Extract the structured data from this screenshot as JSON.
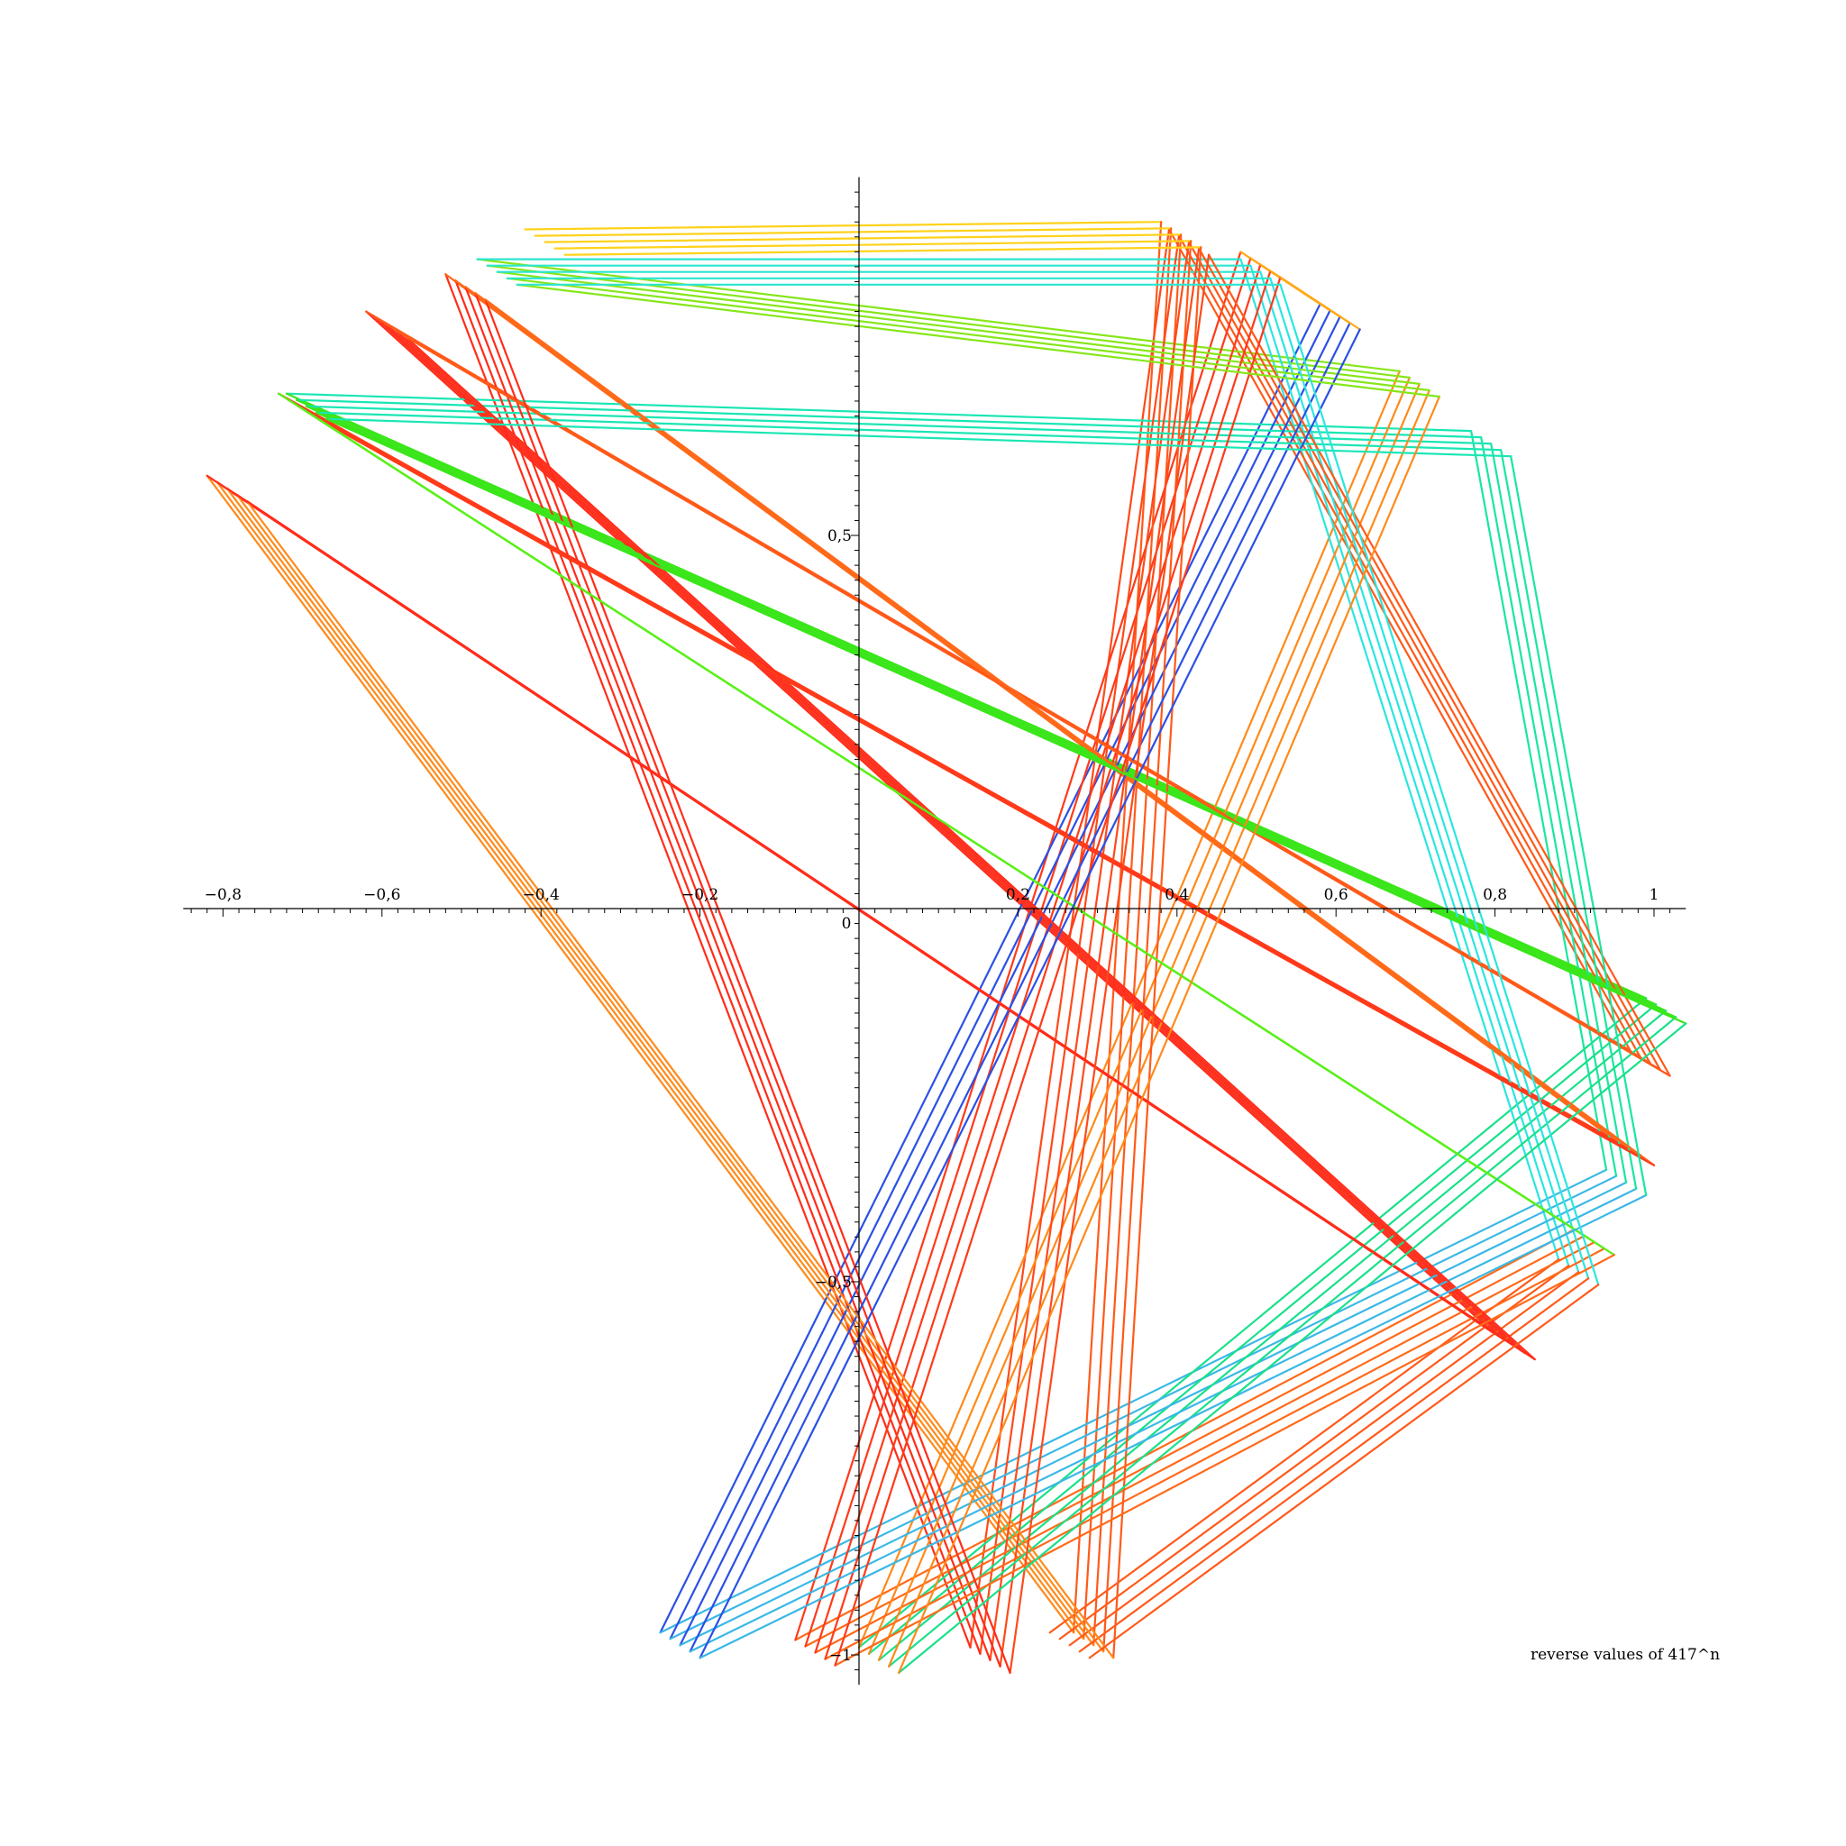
{
  "chart_data": {
    "type": "line",
    "caption": "reverse values of 417^n",
    "xlim": [
      -0.85,
      1.04
    ],
    "ylim": [
      -1.04,
      0.98
    ],
    "x_ticks": [
      {
        "value": -0.8,
        "label": "−0,8"
      },
      {
        "value": -0.6,
        "label": "−0,6"
      },
      {
        "value": -0.4,
        "label": "−0,4"
      },
      {
        "value": -0.2,
        "label": "−0,2"
      },
      {
        "value": 0.2,
        "label": "0,2"
      },
      {
        "value": 0.4,
        "label": "0,4"
      },
      {
        "value": 0.6,
        "label": "0,6"
      },
      {
        "value": 0.8,
        "label": "0,8"
      },
      {
        "value": 1,
        "label": "1"
      }
    ],
    "y_ticks": [
      {
        "value": 0.5,
        "label": "0,5"
      },
      {
        "value": -0.5,
        "label": "−0,5"
      },
      {
        "value": -1,
        "label": "−1"
      }
    ],
    "origin_label": "0",
    "strands": 5,
    "strand_offset": [
      0.0125,
      0.0085
    ],
    "vertices": [
      [
        -0.42,
        0.91
      ],
      [
        0.38,
        0.92
      ],
      [
        0.27,
        -0.97
      ],
      [
        -0.82,
        0.58
      ],
      [
        0.8,
        -0.57
      ],
      [
        -0.62,
        0.8
      ],
      [
        0.97,
        -0.19
      ],
      [
        0.39,
        0.91
      ],
      [
        0.14,
        -0.99
      ],
      [
        -0.52,
        0.85
      ],
      [
        0.95,
        -0.31
      ],
      [
        -0.73,
        0.69
      ],
      [
        0.9,
        -0.43
      ],
      [
        -0.08,
        -0.98
      ],
      [
        0.48,
        0.88
      ],
      [
        0.58,
        0.81
      ],
      [
        -0.25,
        -0.97
      ],
      [
        0.94,
        -0.35
      ],
      [
        0.77,
        0.64
      ],
      [
        -0.72,
        0.69
      ],
      [
        0.99,
        -0.12
      ],
      [
        0.0,
        -0.99
      ],
      [
        0.68,
        0.72
      ],
      [
        -0.48,
        0.87
      ],
      [
        0.48,
        0.87
      ],
      [
        0.88,
        -0.47
      ],
      [
        0.24,
        -0.97
      ]
    ],
    "colors": [
      "#ffd21a",
      "#ff5a1a",
      "#ff8a1a",
      "#ff2d1a",
      "#ff2d1a",
      "#ff5a1a",
      "#ff5a1a",
      "#ff4a1a",
      "#ff2d1a",
      "#ff6a1a",
      "#ff3a1a",
      "#5af01a",
      "#ff6a1a",
      "#ff3a1a",
      "#ffaa1a",
      "#2a50e6",
      "#3ab8e6",
      "#1ae6a0",
      "#1ae6b4",
      "#3ae61a",
      "#1ae08a",
      "#ff8a1a",
      "#86e61a",
      "#2ae6d0",
      "#2ae6e0",
      "#ff5a1a"
    ]
  }
}
